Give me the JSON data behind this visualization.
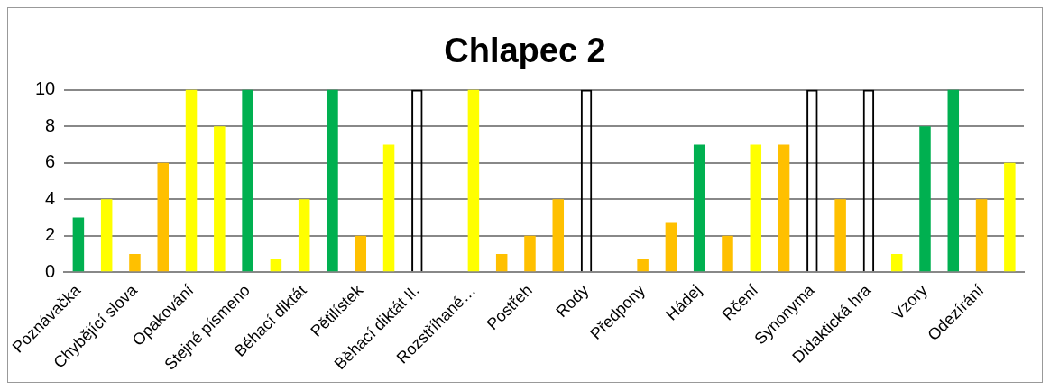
{
  "chart_data": {
    "type": "bar",
    "title": "Chlapec 2",
    "categories": [
      "Poznávačka",
      null,
      "Chybějící slova",
      null,
      "Opakování",
      null,
      "Stejné písmeno",
      null,
      "Běhací diktát",
      null,
      "Pětilístek",
      null,
      "Běhací diktát II.",
      null,
      "Rozstříhané…",
      null,
      "Postřeh",
      null,
      "Rody",
      null,
      "Předpony",
      null,
      "Hádej",
      null,
      "Rčení",
      null,
      "Synonyma",
      null,
      "Didaktická hra",
      null,
      "Vzory",
      null,
      "Odezírání",
      null
    ],
    "values": [
      3,
      4,
      1,
      6,
      10,
      8,
      10,
      0.7,
      4,
      10,
      2,
      7,
      10,
      null,
      10,
      1,
      2,
      4,
      10,
      null,
      0.7,
      2.7,
      7,
      2,
      7,
      7,
      10,
      4,
      10,
      1,
      8,
      10,
      4,
      6
    ],
    "colors": [
      "#00b050",
      "#ffff00",
      "#ffc000",
      "#ffc000",
      "#ffff00",
      "#ffff00",
      "#00b050",
      "#ffff00",
      "#ffff00",
      "#00b050",
      "#ffc000",
      "#ffff00",
      "#000000",
      "#ffffff",
      "#ffff00",
      "#ffc000",
      "#ffc000",
      "#ffc000",
      "#000000",
      "#ffffff",
      "#ffc000",
      "#ffc000",
      "#00b050",
      "#ffc000",
      "#ffff00",
      "#ffc000",
      "#000000",
      "#ffc000",
      "#000000",
      "#ffff00",
      "#00b050",
      "#00b050",
      "#ffc000",
      "#ffff00"
    ],
    "ylim": [
      0,
      10
    ],
    "yticks": [
      0,
      2,
      4,
      6,
      8,
      10
    ],
    "grid": "y"
  }
}
